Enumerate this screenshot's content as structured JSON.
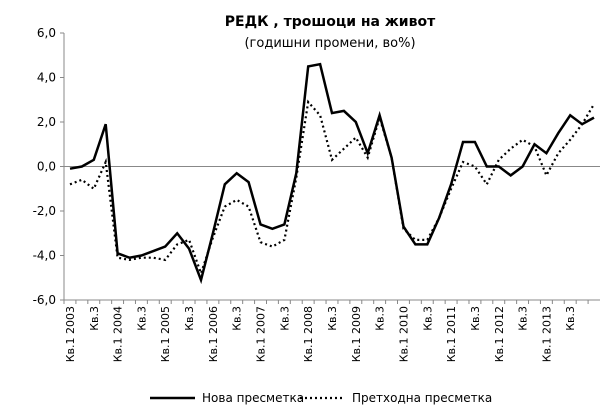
{
  "chart_data": {
    "type": "line",
    "title": "РЕДК , трошоци на  живот",
    "subtitle": "(годишни промени, во%)",
    "categories": [
      "Кв.1 2003",
      null,
      "Кв.3",
      null,
      "Кв.1 2004",
      null,
      "Кв.3",
      null,
      "Кв.1 2005",
      null,
      "Кв.3",
      null,
      "Кв.1 2006",
      null,
      "Кв.3",
      null,
      "Кв.1 2007",
      null,
      "Кв.3",
      null,
      "Кв.1 2008",
      null,
      "Кв.3",
      null,
      "Кв.1 2009",
      null,
      "Кв.3",
      null,
      "Кв.1 2010",
      null,
      "Кв.3",
      null,
      "Кв.1 2011",
      null,
      "Кв.3",
      null,
      "Кв.1 2012",
      null,
      "Кв.3",
      null,
      "Кв.1 2013",
      null,
      "Кв.3",
      null,
      null
    ],
    "series": [
      {
        "name": "Нова пресметка",
        "color": "#000000",
        "dash": "solid",
        "values": [
          -0.1,
          0.0,
          0.3,
          1.9,
          -3.9,
          -4.1,
          -4.0,
          -3.8,
          -3.6,
          -3.0,
          -3.7,
          -5.1,
          -3.0,
          -0.8,
          -0.3,
          -0.7,
          -2.6,
          -2.8,
          -2.6,
          -0.3,
          4.5,
          4.6,
          2.4,
          2.5,
          2.0,
          0.6,
          2.3,
          0.4,
          -2.7,
          -3.5,
          -3.5,
          -2.3,
          -0.8,
          1.1,
          1.1,
          0.0,
          0.0,
          -0.4,
          0.0,
          1.0,
          0.6,
          1.5,
          2.3,
          1.9,
          2.2
        ]
      },
      {
        "name": "Претходна пресметка",
        "color": "#000000",
        "dash": "dotted",
        "values": [
          -0.8,
          -0.6,
          -1.0,
          0.2,
          -4.1,
          -4.2,
          -4.1,
          -4.1,
          -4.2,
          -3.5,
          -3.3,
          -4.8,
          -3.2,
          -1.8,
          -1.5,
          -1.8,
          -3.4,
          -3.6,
          -3.3,
          -0.5,
          2.9,
          2.3,
          0.3,
          0.8,
          1.3,
          0.4,
          2.2,
          0.4,
          -2.8,
          -3.3,
          -3.3,
          -2.3,
          -1.0,
          0.2,
          0.0,
          -0.8,
          0.3,
          0.8,
          1.2,
          0.9,
          -0.4,
          0.6,
          1.2,
          1.9,
          2.8
        ]
      }
    ],
    "ylim": [
      -6,
      6
    ],
    "yticks": [
      {
        "value": -6,
        "label": "-6,0"
      },
      {
        "value": -4,
        "label": "-4,0"
      },
      {
        "value": -2,
        "label": "-2,0"
      },
      {
        "value": 0,
        "label": "0,0"
      },
      {
        "value": 2,
        "label": "2,0"
      },
      {
        "value": 4,
        "label": "4,0"
      },
      {
        "value": 6,
        "label": "6,0"
      }
    ],
    "grid": false,
    "legend": "bottom"
  }
}
